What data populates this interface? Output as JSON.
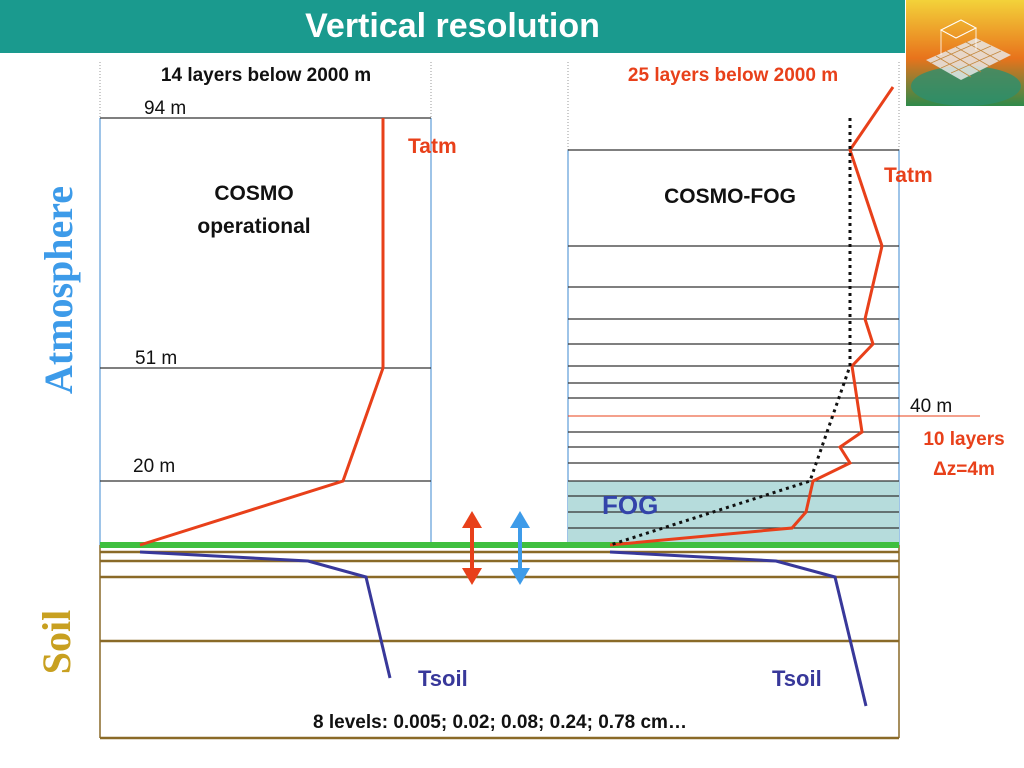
{
  "slide": {
    "title": "Vertical resolution"
  },
  "side_labels": {
    "atmosphere": "Atmosphere",
    "soil": "Soil"
  },
  "left_column": {
    "header": "14 layers below 2000 m",
    "model_line1": "COSMO",
    "model_line2": "operational",
    "height_labels": [
      "94 m",
      "51 m",
      "20 m"
    ],
    "tatm_label": "Tatm",
    "tsoil_label": "Tsoil"
  },
  "right_column": {
    "header": "25 layers below 2000 m",
    "model_name": "COSMO-FOG",
    "tatm_label": "Tatm",
    "height_label": "40 m",
    "layers_note": "10 layers",
    "dz_note": "Δz=4m",
    "fog_label": "FOG",
    "tsoil_label": "Tsoil"
  },
  "bottom_note": "8 levels: 0.005; 0.02; 0.08; 0.24; 0.78 cm…",
  "colors": {
    "title_bar": "#1a9a8e",
    "atmosphere_label": "#3d9be9",
    "soil_label": "#c8a020",
    "temperature_profile": "#e8401a",
    "soil_profile": "#38389a",
    "fog_fill": "#b6dcdc",
    "ground_line": "#3fbf3f",
    "soil_layer_line": "#8a6a28",
    "column_border": "#7fb0e0",
    "header_red": "#e8401a",
    "fog_text": "#3344aa"
  },
  "icons": {
    "logo": "model-grid-logo",
    "exchange_arrow_red": "double-arrow-icon",
    "exchange_arrow_blue": "double-arrow-icon"
  }
}
